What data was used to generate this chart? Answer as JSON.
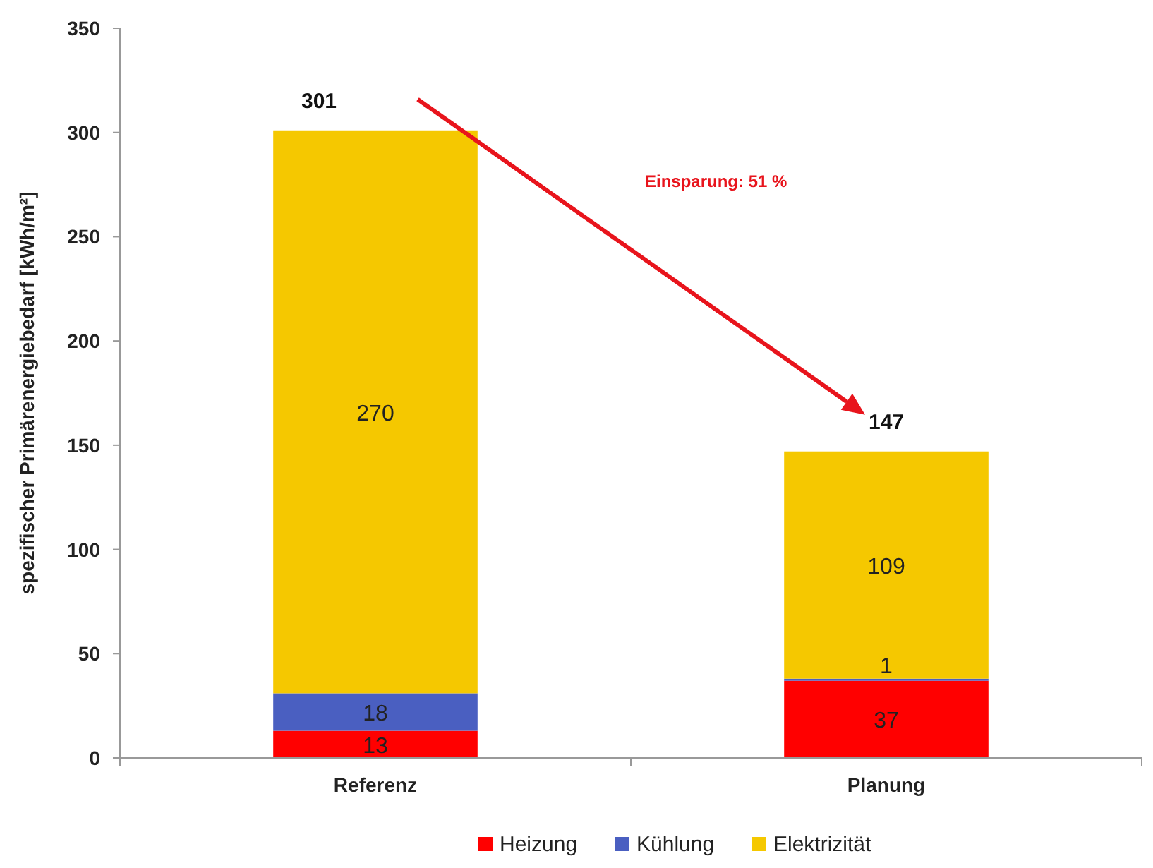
{
  "chart_data": {
    "type": "bar",
    "stacked": true,
    "ylabel": "spezifischer Primärenergiebedarf [kWh/m²]",
    "categories": [
      "Referenz",
      "Planung"
    ],
    "series": [
      {
        "name": "Heizung",
        "color": "#ff0000",
        "values": [
          13,
          37
        ]
      },
      {
        "name": "Kühlung",
        "color": "#4a5fc1",
        "values": [
          18,
          1
        ]
      },
      {
        "name": "Elektrizität",
        "color": "#f5c800",
        "values": [
          270,
          109
        ]
      }
    ],
    "ylim": [
      0,
      350
    ],
    "yticks": [
      0,
      50,
      100,
      150,
      200,
      250,
      300,
      350
    ],
    "data_labels": true,
    "totals": [
      "301",
      "147"
    ],
    "annotations": [
      "Einsparung: 51 %"
    ],
    "legend": "bottom",
    "grid": false
  }
}
